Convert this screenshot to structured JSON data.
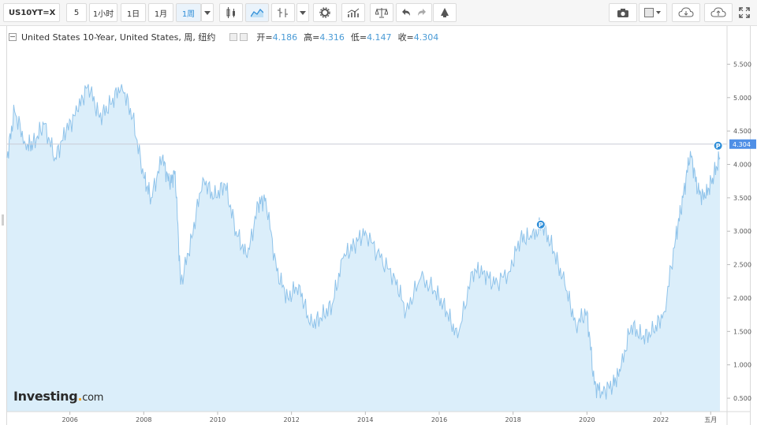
{
  "toolbar": {
    "symbol": "US10YT=X",
    "intervals": [
      "5",
      "1小时",
      "1日",
      "1月",
      "1周"
    ],
    "active_interval": "1周",
    "icons": [
      "candlestick-icon",
      "area-chart-icon",
      "indicators-icon",
      "dropdown-icon",
      "settings-icon",
      "studies-icon",
      "balance-icon",
      "undo-icon",
      "redo-icon",
      "alert-icon",
      "camera-icon",
      "color-box-icon",
      "cloud-download-icon",
      "cloud-upload-icon",
      "fullscreen-icon"
    ],
    "accent_color": "#2f8ed8"
  },
  "legend": {
    "series_name": "United States 10-Year, United States, 周, 纽约",
    "open_label": "开=",
    "open_value": "4.186",
    "high_label": "高=",
    "high_value": "4.316",
    "low_label": "低=",
    "low_value": "4.147",
    "close_label": "收=",
    "close_value": "4.304"
  },
  "logo": {
    "main": "Investing",
    "dot": ".",
    "suffix": "com"
  },
  "chart_data": {
    "type": "area",
    "x": [
      2004.3,
      2004.5,
      2004.8,
      2005.0,
      2005.3,
      2005.6,
      2005.9,
      2006.2,
      2006.5,
      2006.8,
      2007.1,
      2007.4,
      2007.7,
      2008.0,
      2008.2,
      2008.5,
      2008.7,
      2008.85,
      2009.0,
      2009.3,
      2009.6,
      2009.9,
      2010.2,
      2010.5,
      2010.8,
      2011.1,
      2011.3,
      2011.6,
      2011.9,
      2012.2,
      2012.5,
      2012.8,
      2013.1,
      2013.4,
      2013.7,
      2014.0,
      2014.4,
      2014.8,
      2015.1,
      2015.5,
      2015.9,
      2016.2,
      2016.5,
      2016.9,
      2017.2,
      2017.5,
      2017.9,
      2018.2,
      2018.5,
      2018.8,
      2019.1,
      2019.4,
      2019.7,
      2020.0,
      2020.2,
      2020.4,
      2020.7,
      2020.9,
      2021.2,
      2021.5,
      2021.8,
      2022.1,
      2022.4,
      2022.6,
      2022.8,
      2023.0,
      2023.2,
      2023.4,
      2023.6
    ],
    "values": [
      4.1,
      4.8,
      4.3,
      4.3,
      4.6,
      4.1,
      4.5,
      4.8,
      5.2,
      4.7,
      4.9,
      5.2,
      4.7,
      3.8,
      3.5,
      4.1,
      3.7,
      3.9,
      2.2,
      2.9,
      3.8,
      3.5,
      3.7,
      3.0,
      2.6,
      3.4,
      3.5,
      2.4,
      2.0,
      2.2,
      1.6,
      1.7,
      1.9,
      2.6,
      2.8,
      3.0,
      2.6,
      2.3,
      1.8,
      2.3,
      2.1,
      1.8,
      1.4,
      2.4,
      2.4,
      2.2,
      2.4,
      2.9,
      2.9,
      3.1,
      2.7,
      2.2,
      1.6,
      1.8,
      0.7,
      0.6,
      0.7,
      0.9,
      1.6,
      1.4,
      1.5,
      1.8,
      2.9,
      3.5,
      4.2,
      3.6,
      3.5,
      3.8,
      4.1
    ],
    "y_ticks": [
      "0.500",
      "1.000",
      "1.500",
      "2.000",
      "2.500",
      "3.000",
      "3.500",
      "4.000",
      "4.500",
      "5.000",
      "5.500"
    ],
    "x_ticks": [
      "2006",
      "2008",
      "2010",
      "2012",
      "2014",
      "2016",
      "2018",
      "2020",
      "2022",
      "五月"
    ],
    "last_value_label": "4.304",
    "marker_label": "P",
    "ylim": [
      0.3,
      5.8
    ],
    "xlim": [
      2004.3,
      2023.75
    ],
    "line_color": "#8fc3ea",
    "fill_color": "#dbeefa",
    "last_value_color": "#4f8fe6",
    "grid": false
  }
}
